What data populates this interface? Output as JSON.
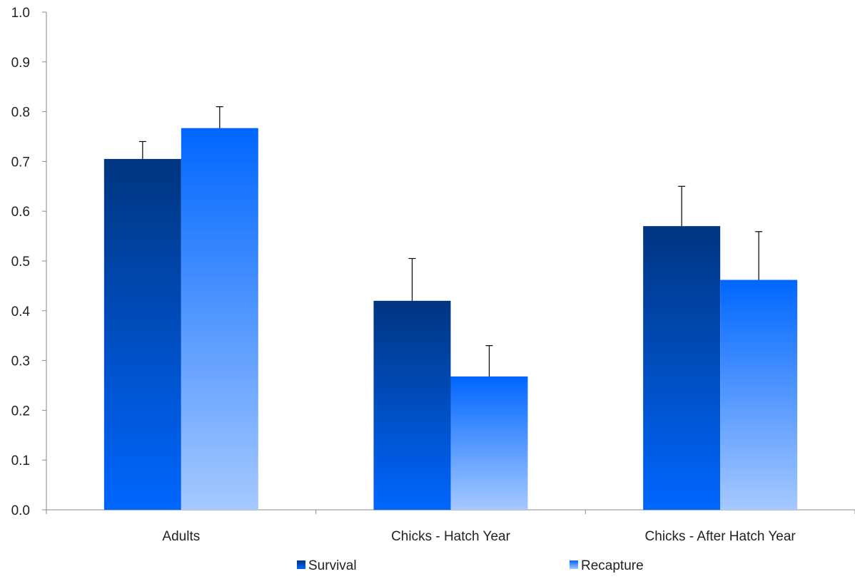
{
  "chart_data": {
    "type": "bar",
    "title": "",
    "xlabel": "",
    "ylabel": "",
    "ylim": [
      0,
      1.0
    ],
    "yticks": [
      "0.0",
      "0.1",
      "0.2",
      "0.3",
      "0.4",
      "0.5",
      "0.6",
      "0.7",
      "0.8",
      "0.9",
      "1.0"
    ],
    "categories": [
      "Adults",
      "Chicks - Hatch Year",
      "Chicks - After Hatch Year"
    ],
    "series": [
      {
        "name": "Survival",
        "values": [
          0.705,
          0.42,
          0.57
        ],
        "error_upper": [
          0.035,
          0.085,
          0.08
        ],
        "color_top": "#003580",
        "color_bottom": "#0066ff"
      },
      {
        "name": "Recapture",
        "values": [
          0.767,
          0.268,
          0.462
        ],
        "error_upper": [
          0.043,
          0.062,
          0.097
        ],
        "color_top": "#0066ff",
        "color_bottom": "#a6c9ff"
      }
    ],
    "grid": false,
    "legend": "bottom"
  }
}
